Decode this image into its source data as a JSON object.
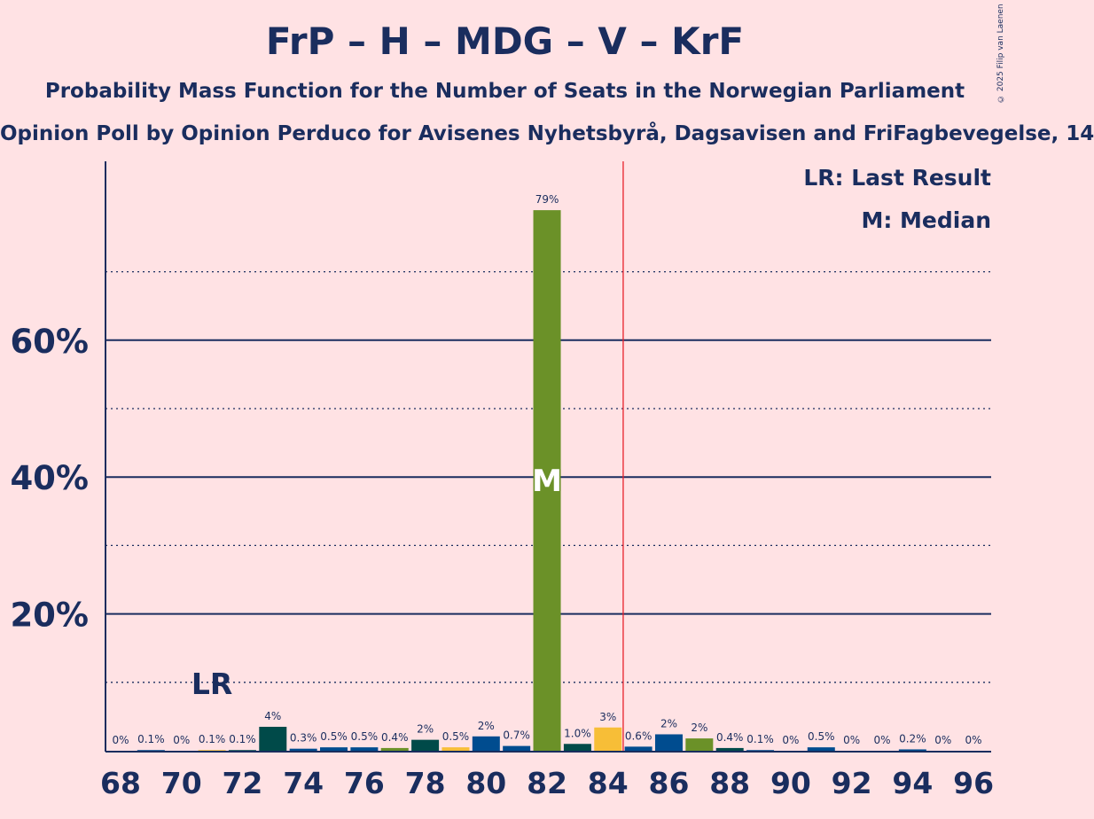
{
  "title": "FrP – H – MDG – V – KrF",
  "subtitle": "Probability Mass Function for the Number of Seats in the Norwegian Parliament",
  "subsubtitle": "Opinion Poll by Opinion Perduco for Avisenes Nyhetsbyrå, Dagsavisen and FriFagbevegelse, 14",
  "copyright": "© 2025 Filip van Laenen",
  "legend": {
    "last_result": "LR: Last Result",
    "median": "M: Median"
  },
  "colors": {
    "background": "#FFE2E4",
    "text": "#1a2d5e",
    "majority_line": "#e8202a",
    "palette": [
      "#004A49",
      "#004C8F",
      "#6B9128",
      "#F7BE37",
      "#1a2d5e"
    ]
  },
  "chart_data": {
    "type": "bar",
    "x": [
      68,
      69,
      70,
      71,
      72,
      73,
      74,
      75,
      76,
      77,
      78,
      79,
      80,
      81,
      82,
      83,
      84,
      85,
      86,
      87,
      88,
      89,
      90,
      91,
      92,
      93,
      94,
      95,
      96
    ],
    "values": [
      0,
      0.1,
      0,
      0.1,
      0.1,
      3.5,
      0.3,
      0.5,
      0.5,
      0.4,
      1.6,
      0.5,
      2.1,
      0.7,
      79,
      1.0,
      3.4,
      0.6,
      2.4,
      1.8,
      0.4,
      0.1,
      0,
      0.5,
      0,
      0,
      0.2,
      0,
      0
    ],
    "value_labels": [
      "0%",
      "0.1%",
      "0%",
      "0.1%",
      "0.1%",
      "4%",
      "0.3%",
      "0.5%",
      "0.5%",
      "0.4%",
      "2%",
      "0.5%",
      "2%",
      "0.7%",
      "79%",
      "1.0%",
      "3%",
      "0.6%",
      "2%",
      "2%",
      "0.4%",
      "0.1%",
      "0%",
      "0.5%",
      "0%",
      "0%",
      "0.2%",
      "0%",
      "0%"
    ],
    "bar_colors": [
      "#004A49",
      "#004C8F",
      "#6B9128",
      "#F7BE37",
      "#004A49",
      "#004A49",
      "#004C8F",
      "#004C8F",
      "#004C8F",
      "#6B9128",
      "#004A49",
      "#F7BE37",
      "#004C8F",
      "#004C8F",
      "#6B9128",
      "#004A49",
      "#F7BE37",
      "#004C8F",
      "#004C8F",
      "#6B9128",
      "#004A49",
      "#004C8F",
      "#6B9128",
      "#004C8F",
      "#004A49",
      "#004C8F",
      "#004C8F",
      "#004A49",
      "#004C8F"
    ],
    "x_tick_labels": [
      "68",
      "70",
      "72",
      "74",
      "76",
      "78",
      "80",
      "82",
      "84",
      "86",
      "88",
      "90",
      "92",
      "94",
      "96"
    ],
    "y_tick_labels": [
      "20%",
      "40%",
      "60%"
    ],
    "y_ticks": [
      20,
      40,
      60
    ],
    "y_minor_gridlines": [
      10,
      30,
      50,
      70
    ],
    "ylim": [
      0,
      86
    ],
    "xlim": [
      67.5,
      96.5
    ],
    "majority_line_x": 84.5,
    "last_result_x": 71,
    "last_result_label": "LR",
    "median_x": 82,
    "median_label": "M",
    "legend_position": "top-right",
    "grid": true
  }
}
